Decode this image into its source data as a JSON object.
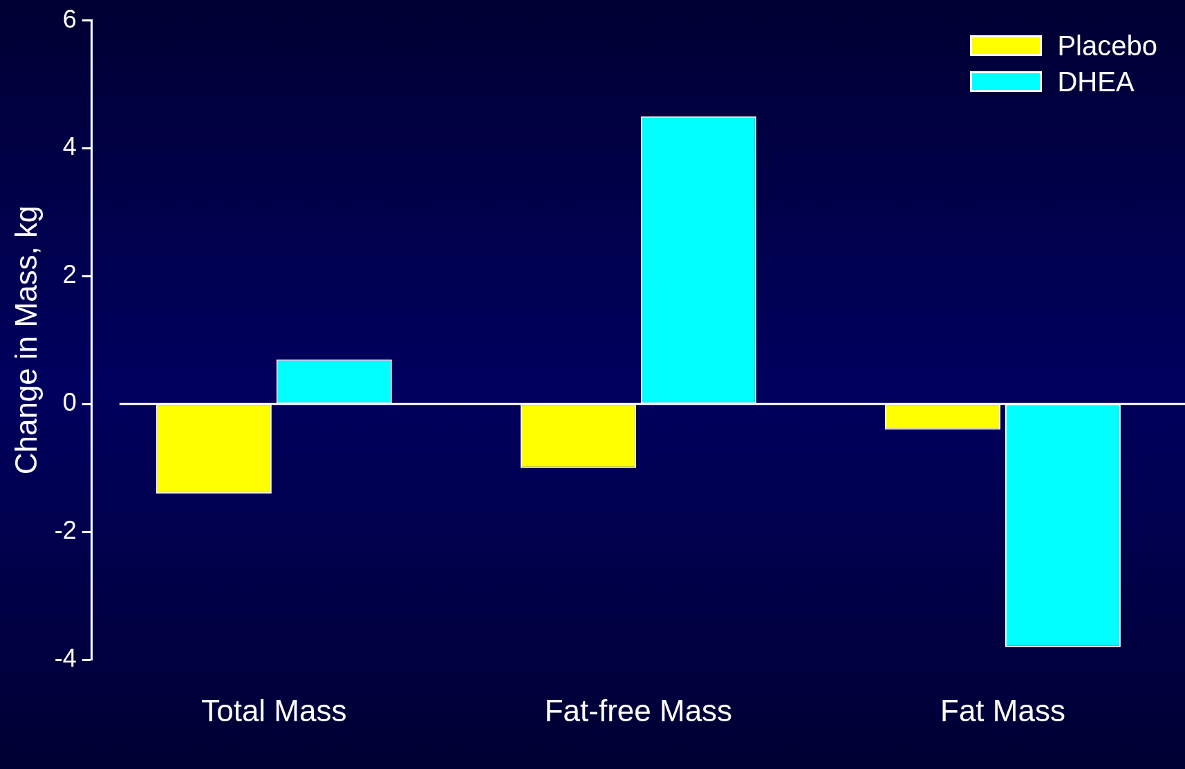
{
  "chart_data": {
    "type": "bar",
    "ylabel": "Change in Mass, kg",
    "categories": [
      "Total Mass",
      "Fat-free Mass",
      "Fat Mass"
    ],
    "series": [
      {
        "name": "Placebo",
        "color": "#ffff00",
        "values": [
          -1.4,
          -1.0,
          -0.4
        ]
      },
      {
        "name": "DHEA",
        "color": "#00ffff",
        "values": [
          0.7,
          4.5,
          -3.8
        ]
      }
    ],
    "ylim": [
      -4,
      6
    ],
    "yticks": [
      -4,
      -2,
      0,
      2,
      4,
      6
    ],
    "grid": false,
    "legend": "top right",
    "ref_lines": [
      {
        "axis": "y",
        "value": 0,
        "color": "#ffffff"
      }
    ]
  }
}
